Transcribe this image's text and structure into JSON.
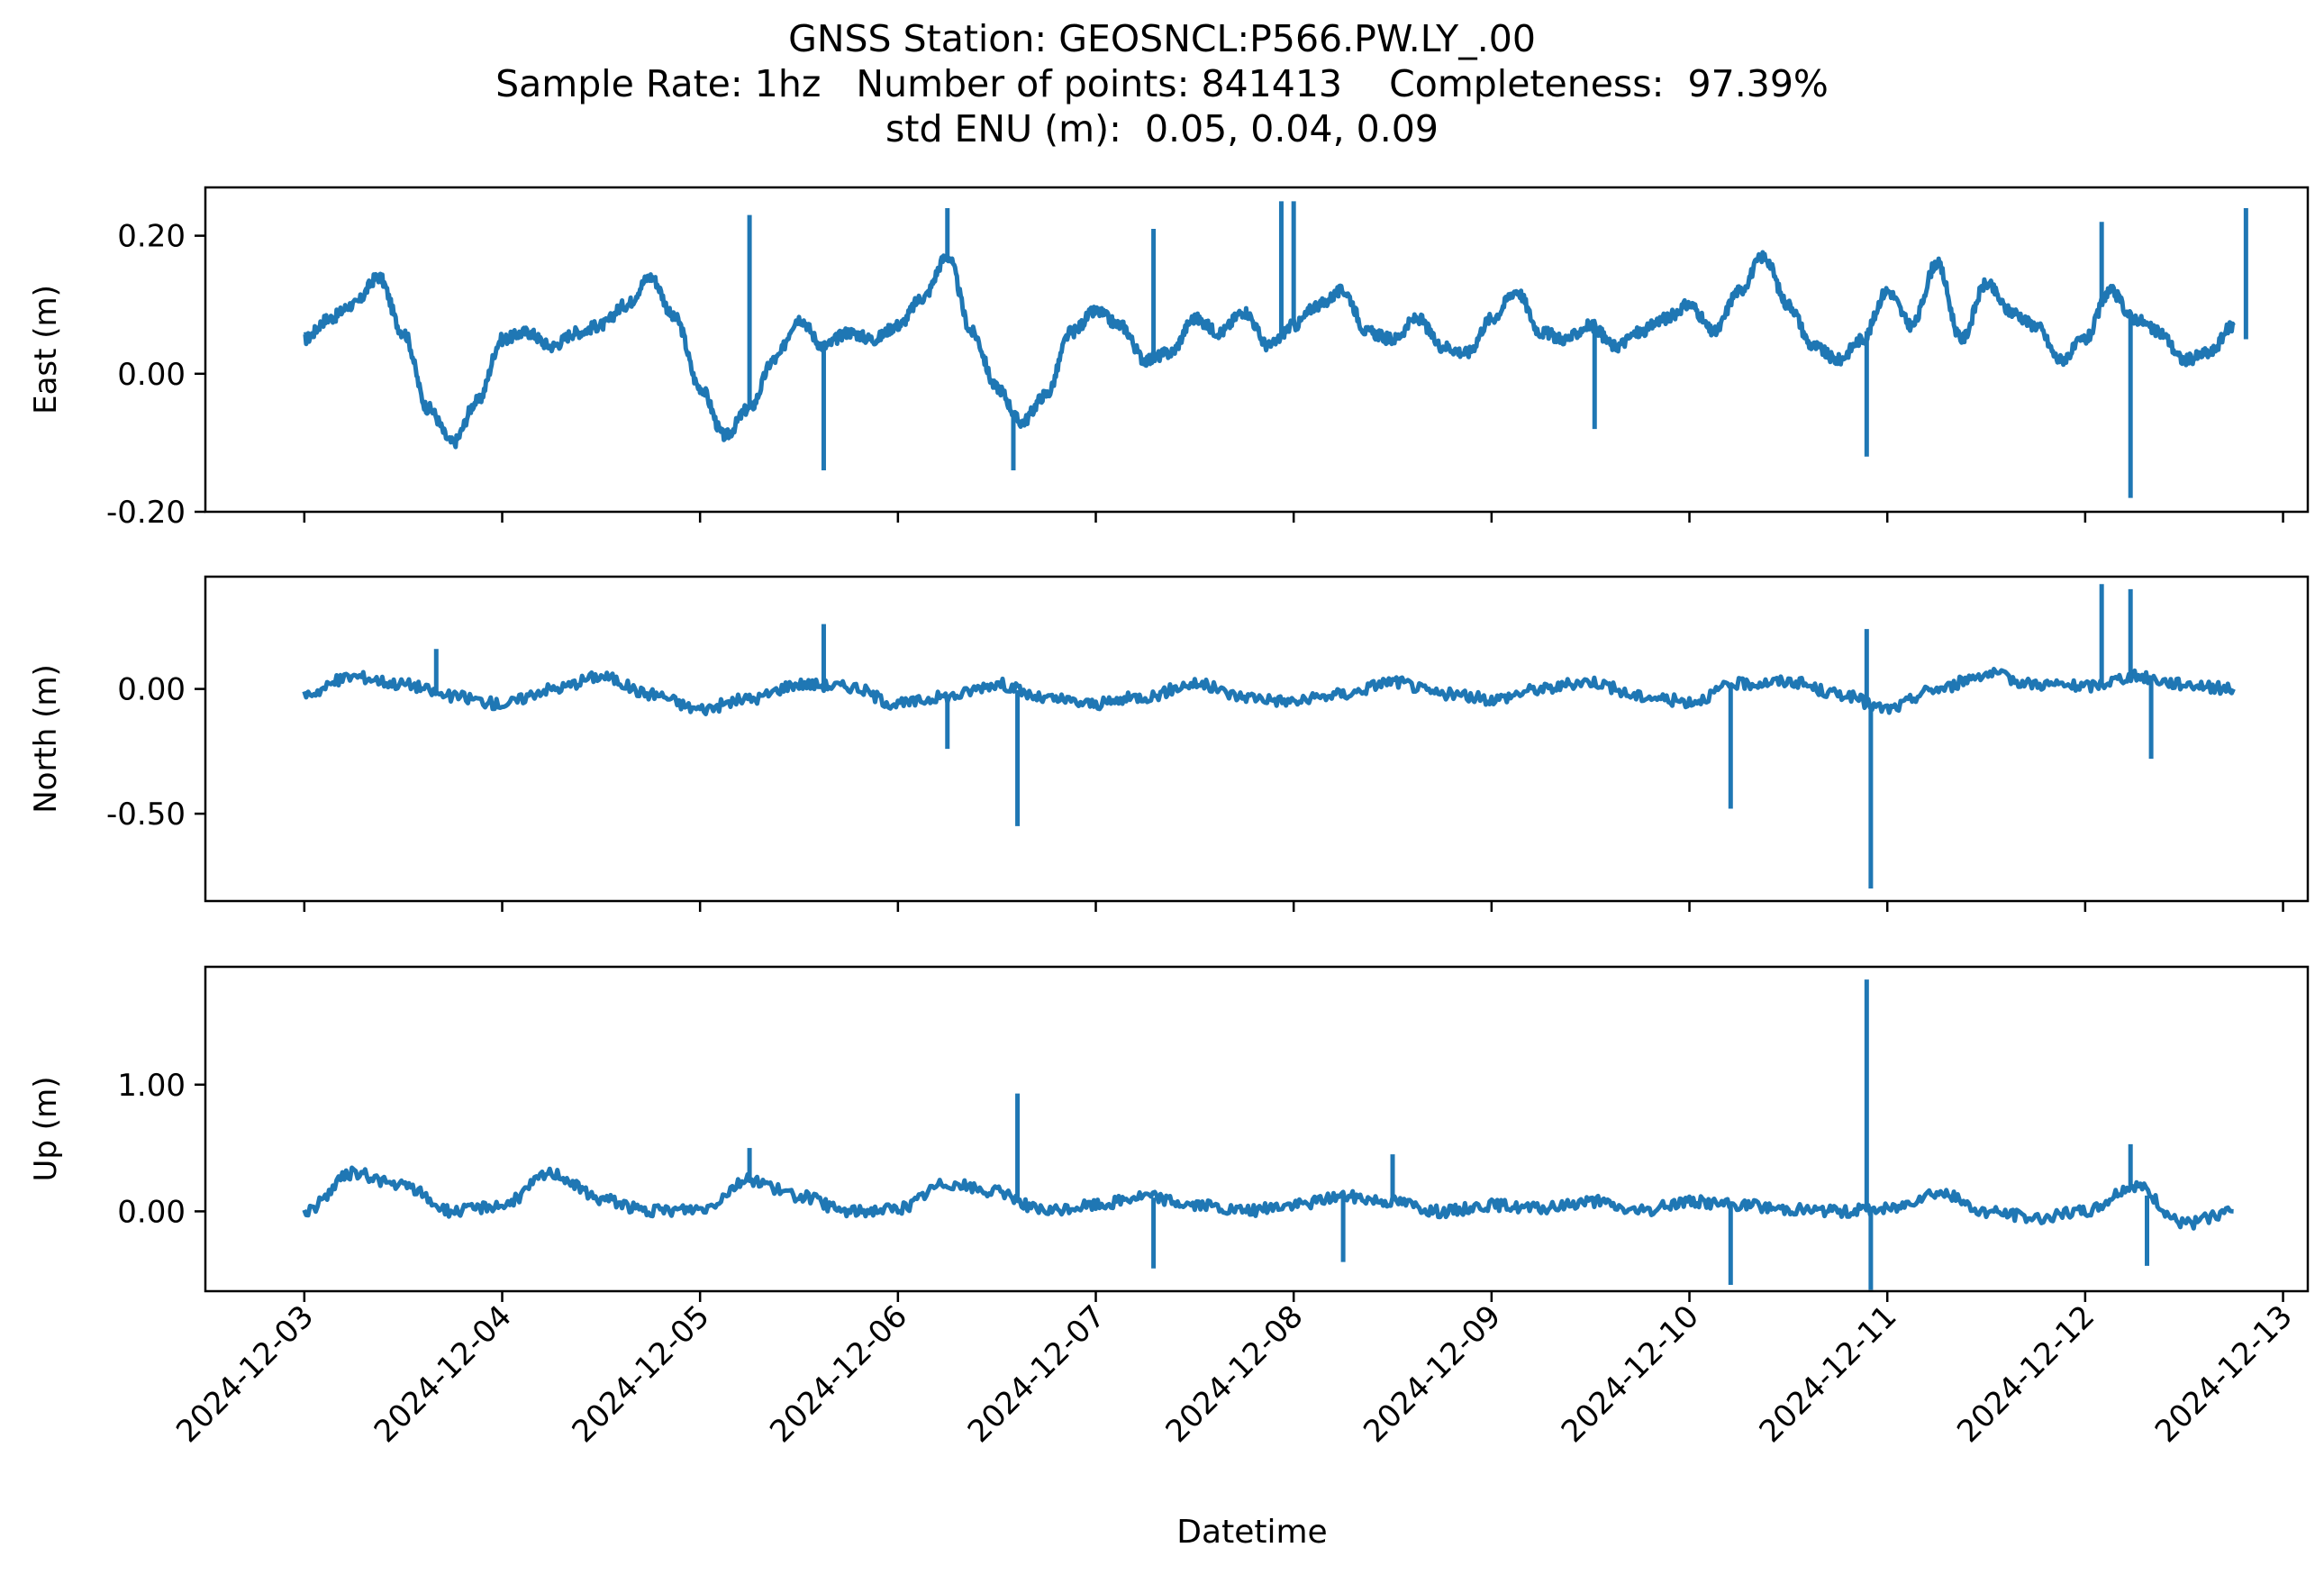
{
  "chart_data": {
    "type": "line",
    "title_lines": [
      "GNSS Station: GEOSNCL:P566.PW.LY_.00",
      "Sample Rate: 1hz   Number of points: 841413    Completeness:  97.39%",
      "std ENU (m):  0.05, 0.04, 0.09"
    ],
    "xlabel": "Datetime",
    "x_ticks": [
      "2024-12-03",
      "2024-12-04",
      "2024-12-05",
      "2024-12-06",
      "2024-12-07",
      "2024-12-08",
      "2024-12-09",
      "2024-12-10",
      "2024-12-11",
      "2024-12-12",
      "2024-12-13"
    ],
    "x_range": [
      "2024-12-02T12:00",
      "2024-12-13T03:00"
    ],
    "line_color": "#1f77b4",
    "grid": false,
    "panels": [
      {
        "ylabel": "East (m)",
        "ylim": [
          -0.2,
          0.27
        ],
        "y_ticks": [
          0.2,
          0.0,
          -0.2
        ],
        "y_tick_labels": [
          "0.20",
          "0.00",
          "-0.20"
        ],
        "x": [
          "2024-12-03T00:00",
          "2024-12-03T03:00",
          "2024-12-03T06:00",
          "2024-12-03T09:00",
          "2024-12-03T12:00",
          "2024-12-03T15:00",
          "2024-12-03T18:00",
          "2024-12-03T21:00",
          "2024-12-04T00:00",
          "2024-12-04T03:00",
          "2024-12-04T06:00",
          "2024-12-04T09:00",
          "2024-12-04T12:00",
          "2024-12-04T15:00",
          "2024-12-04T18:00",
          "2024-12-04T21:00",
          "2024-12-05T00:00",
          "2024-12-05T03:00",
          "2024-12-05T06:00",
          "2024-12-05T09:00",
          "2024-12-05T12:00",
          "2024-12-05T15:00",
          "2024-12-05T18:00",
          "2024-12-05T21:00",
          "2024-12-06T00:00",
          "2024-12-06T03:00",
          "2024-12-06T06:00",
          "2024-12-06T09:00",
          "2024-12-06T12:00",
          "2024-12-06T15:00",
          "2024-12-06T18:00",
          "2024-12-06T21:00",
          "2024-12-07T00:00",
          "2024-12-07T03:00",
          "2024-12-07T06:00",
          "2024-12-07T09:00",
          "2024-12-07T12:00",
          "2024-12-07T15:00",
          "2024-12-07T18:00",
          "2024-12-07T21:00",
          "2024-12-08T00:00",
          "2024-12-08T03:00",
          "2024-12-08T06:00",
          "2024-12-08T09:00",
          "2024-12-08T12:00",
          "2024-12-08T15:00",
          "2024-12-08T18:00",
          "2024-12-08T21:00",
          "2024-12-09T00:00",
          "2024-12-09T03:00",
          "2024-12-09T06:00",
          "2024-12-09T09:00",
          "2024-12-09T12:00",
          "2024-12-09T15:00",
          "2024-12-09T18:00",
          "2024-12-09T21:00",
          "2024-12-10T00:00",
          "2024-12-10T03:00",
          "2024-12-10T06:00",
          "2024-12-10T09:00",
          "2024-12-10T12:00",
          "2024-12-10T15:00",
          "2024-12-10T18:00",
          "2024-12-10T21:00",
          "2024-12-11T00:00",
          "2024-12-11T03:00",
          "2024-12-11T06:00",
          "2024-12-11T09:00",
          "2024-12-11T12:00",
          "2024-12-11T15:00",
          "2024-12-11T18:00",
          "2024-12-11T21:00",
          "2024-12-12T00:00",
          "2024-12-12T03:00",
          "2024-12-12T06:00",
          "2024-12-12T09:00",
          "2024-12-12T12:00",
          "2024-12-12T15:00",
          "2024-12-12T18:00"
        ],
        "values": [
          0.05,
          0.08,
          0.1,
          0.14,
          0.06,
          -0.05,
          -0.1,
          -0.04,
          0.05,
          0.06,
          0.04,
          0.06,
          0.07,
          0.1,
          0.14,
          0.08,
          -0.02,
          -0.09,
          -0.05,
          0.02,
          0.08,
          0.04,
          0.06,
          0.05,
          0.07,
          0.11,
          0.17,
          0.06,
          -0.02,
          -0.07,
          -0.03,
          0.06,
          0.09,
          0.07,
          0.02,
          0.03,
          0.08,
          0.06,
          0.09,
          0.04,
          0.07,
          0.1,
          0.12,
          0.06,
          0.05,
          0.08,
          0.04,
          0.03,
          0.08,
          0.12,
          0.06,
          0.05,
          0.07,
          0.04,
          0.06,
          0.08,
          0.1,
          0.06,
          0.12,
          0.17,
          0.1,
          0.04,
          0.02,
          0.05,
          0.12,
          0.07,
          0.16,
          0.05,
          0.13,
          0.09,
          0.07,
          0.02,
          0.05,
          0.12,
          0.08,
          0.06,
          0.02,
          0.03,
          0.07
        ],
        "spikes": [
          {
            "x": "2024-12-05T06:00",
            "value": 0.23
          },
          {
            "x": "2024-12-05T15:00",
            "value": -0.14
          },
          {
            "x": "2024-12-06T06:00",
            "value": 0.24
          },
          {
            "x": "2024-12-06T14:00",
            "value": -0.14
          },
          {
            "x": "2024-12-07T07:00",
            "value": 0.21
          },
          {
            "x": "2024-12-07T22:30",
            "value": 0.25
          },
          {
            "x": "2024-12-08T00:00",
            "value": 0.25
          },
          {
            "x": "2024-12-09T12:30",
            "value": -0.08
          },
          {
            "x": "2024-12-10T21:30",
            "value": -0.12
          },
          {
            "x": "2024-12-12T02:00",
            "value": 0.22
          },
          {
            "x": "2024-12-12T05:30",
            "value": -0.18
          },
          {
            "x": "2024-12-12T19:30",
            "value": 0.24
          }
        ]
      },
      {
        "ylabel": "North (m)",
        "ylim": [
          -0.85,
          0.45
        ],
        "y_ticks": [
          0.0,
          -0.5
        ],
        "y_tick_labels": [
          "0.00",
          "-0.50"
        ],
        "x": [
          "2024-12-03T00:00",
          "2024-12-03T06:00",
          "2024-12-03T12:00",
          "2024-12-03T18:00",
          "2024-12-04T00:00",
          "2024-12-04T06:00",
          "2024-12-04T12:00",
          "2024-12-04T18:00",
          "2024-12-05T00:00",
          "2024-12-05T06:00",
          "2024-12-05T12:00",
          "2024-12-05T18:00",
          "2024-12-06T00:00",
          "2024-12-06T06:00",
          "2024-12-06T12:00",
          "2024-12-06T18:00",
          "2024-12-07T00:00",
          "2024-12-07T06:00",
          "2024-12-07T12:00",
          "2024-12-07T18:00",
          "2024-12-08T00:00",
          "2024-12-08T06:00",
          "2024-12-08T12:00",
          "2024-12-08T18:00",
          "2024-12-09T00:00",
          "2024-12-09T06:00",
          "2024-12-09T12:00",
          "2024-12-09T18:00",
          "2024-12-10T00:00",
          "2024-12-10T06:00",
          "2024-12-10T12:00",
          "2024-12-10T18:00",
          "2024-12-11T00:00",
          "2024-12-11T06:00",
          "2024-12-11T12:00",
          "2024-12-11T18:00",
          "2024-12-12T00:00",
          "2024-12-12T06:00",
          "2024-12-12T12:00",
          "2024-12-12T18:00"
        ],
        "values": [
          -0.02,
          0.05,
          0.02,
          -0.03,
          -0.06,
          0.0,
          0.05,
          -0.02,
          -0.08,
          -0.04,
          0.02,
          0.01,
          -0.06,
          -0.03,
          0.02,
          -0.04,
          -0.06,
          -0.03,
          0.02,
          -0.03,
          -0.05,
          -0.02,
          0.03,
          -0.02,
          -0.04,
          0.0,
          0.03,
          -0.03,
          -0.05,
          0.02,
          0.03,
          -0.02,
          -0.08,
          0.0,
          0.06,
          0.02,
          0.01,
          0.05,
          0.02,
          0.0
        ],
        "spikes": [
          {
            "x": "2024-12-03T16:00",
            "value": 0.16
          },
          {
            "x": "2024-12-05T15:00",
            "value": 0.26
          },
          {
            "x": "2024-12-06T06:00",
            "value": -0.24
          },
          {
            "x": "2024-12-06T14:30",
            "value": -0.55
          },
          {
            "x": "2024-12-10T05:00",
            "value": -0.48
          },
          {
            "x": "2024-12-10T21:30",
            "value": 0.24
          },
          {
            "x": "2024-12-10T22:00",
            "value": -0.8
          },
          {
            "x": "2024-12-12T02:00",
            "value": 0.42
          },
          {
            "x": "2024-12-12T05:30",
            "value": 0.4
          },
          {
            "x": "2024-12-12T08:00",
            "value": -0.28
          }
        ]
      },
      {
        "ylabel": "Up (m)",
        "ylim": [
          -0.63,
          1.93
        ],
        "y_ticks": [
          1.0,
          0.0
        ],
        "y_tick_labels": [
          "1.00",
          "0.00"
        ],
        "x": [
          "2024-12-03T00:00",
          "2024-12-03T06:00",
          "2024-12-03T12:00",
          "2024-12-03T18:00",
          "2024-12-04T00:00",
          "2024-12-04T06:00",
          "2024-12-04T12:00",
          "2024-12-04T18:00",
          "2024-12-05T00:00",
          "2024-12-05T06:00",
          "2024-12-05T12:00",
          "2024-12-05T18:00",
          "2024-12-06T00:00",
          "2024-12-06T06:00",
          "2024-12-06T12:00",
          "2024-12-06T18:00",
          "2024-12-07T00:00",
          "2024-12-07T06:00",
          "2024-12-07T12:00",
          "2024-12-07T18:00",
          "2024-12-08T00:00",
          "2024-12-08T06:00",
          "2024-12-08T12:00",
          "2024-12-08T18:00",
          "2024-12-09T00:00",
          "2024-12-09T06:00",
          "2024-12-09T12:00",
          "2024-12-09T18:00",
          "2024-12-10T00:00",
          "2024-12-10T06:00",
          "2024-12-10T12:00",
          "2024-12-10T18:00",
          "2024-12-11T00:00",
          "2024-12-11T06:00",
          "2024-12-11T12:00",
          "2024-12-11T18:00",
          "2024-12-12T00:00",
          "2024-12-12T06:00",
          "2024-12-12T12:00",
          "2024-12-12T18:00"
        ],
        "values": [
          0.0,
          0.3,
          0.2,
          0.0,
          0.05,
          0.3,
          0.1,
          0.0,
          0.02,
          0.25,
          0.12,
          0.0,
          0.02,
          0.22,
          0.15,
          0.0,
          0.05,
          0.12,
          0.05,
          0.0,
          0.05,
          0.12,
          0.08,
          0.0,
          0.05,
          0.02,
          0.08,
          0.0,
          0.08,
          0.05,
          0.02,
          0.0,
          0.02,
          0.15,
          0.0,
          -0.05,
          0.0,
          0.2,
          -0.1,
          0.0
        ],
        "spikes": [
          {
            "x": "2024-12-05T06:00",
            "value": 0.5
          },
          {
            "x": "2024-12-06T14:30",
            "value": 0.93
          },
          {
            "x": "2024-12-07T07:00",
            "value": -0.45
          },
          {
            "x": "2024-12-08T06:00",
            "value": -0.4
          },
          {
            "x": "2024-12-08T12:00",
            "value": 0.45
          },
          {
            "x": "2024-12-10T05:00",
            "value": -0.58
          },
          {
            "x": "2024-12-10T21:30",
            "value": 1.83
          },
          {
            "x": "2024-12-10T22:00",
            "value": -0.62
          },
          {
            "x": "2024-12-12T05:30",
            "value": 0.53
          },
          {
            "x": "2024-12-12T07:30",
            "value": -0.43
          }
        ]
      }
    ]
  }
}
